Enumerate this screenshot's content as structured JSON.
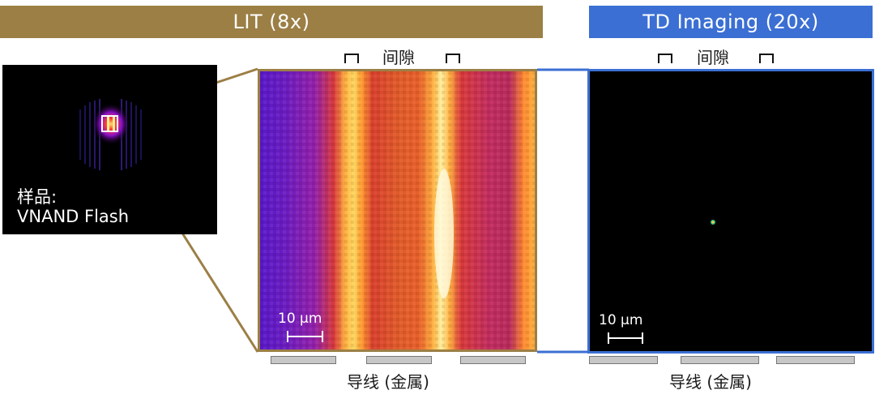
{
  "lit": {
    "title": "LIT (8x)",
    "banner_color": "#9c7f45"
  },
  "td": {
    "title": "TD Imaging (20x)",
    "banner_color": "#3b6fd3"
  },
  "gap_label": "间隙",
  "sample": {
    "label_line1": "样品:",
    "label_line2": "VNAND Flash"
  },
  "scale_bar_label": "10 µm",
  "wire_label": "导线 (金属)"
}
